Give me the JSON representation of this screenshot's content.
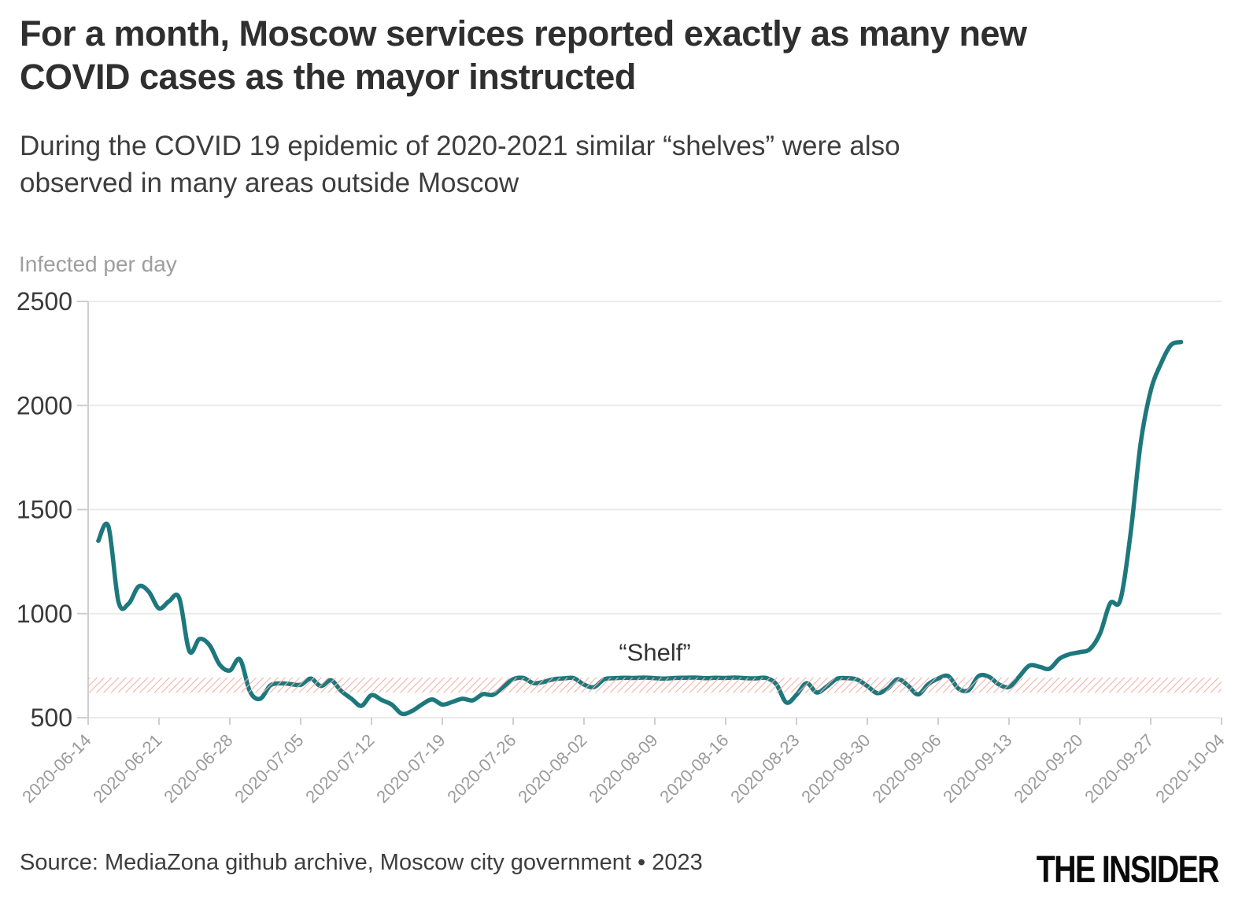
{
  "header": {
    "title_lines": [
      "For a month, Moscow services reported exactly as many new",
      "COVID cases as the mayor instructed"
    ],
    "subtitle_lines": [
      "During the COVID 19 epidemic of 2020-2021 similar “shelves” were also",
      "observed in many areas outside Moscow"
    ]
  },
  "footer": {
    "source": "Source: MediaZona github archive, Moscow city government • 2023",
    "logo": "THE INSIDER"
  },
  "chart_data": {
    "type": "line",
    "axis_title": "Infected per day",
    "ylabel": "Infected per day",
    "xlabel": "",
    "ylim": [
      500,
      2500
    ],
    "y_ticks": [
      2500,
      2000,
      1500,
      1000,
      500
    ],
    "grid": "horizontal",
    "legend": "none",
    "x_tick_labels": [
      "2020-06-14",
      "2020-06-21",
      "2020-06-28",
      "2020-07-05",
      "2020-07-12",
      "2020-07-19",
      "2020-07-26",
      "2020-08-02",
      "2020-08-09",
      "2020-08-16",
      "2020-08-23",
      "2020-08-30",
      "2020-09-06",
      "2020-09-13",
      "2020-09-20",
      "2020-09-27",
      "2020-10-04"
    ],
    "x_range_days": 112,
    "series_start": "2020-06-15",
    "series_start_day_offset": 1,
    "line_color": "#1d787d",
    "axis_color": "#cfcfcf",
    "gridline_color": "#ebebeb",
    "y_label_color": "#3a3a3a",
    "x_label_color": "#9b9b9b",
    "series": [
      {
        "name": "Infected per day, Moscow, daily 2020-06-15 to 2020-09-30",
        "values": [
          1350,
          1420,
          1056,
          1048,
          1131,
          1105,
          1025,
          1060,
          1075,
          820,
          878,
          848,
          755,
          727,
          780,
          625,
          591,
          655,
          665,
          662,
          658,
          688,
          652,
          680,
          629,
          592,
          557,
          608,
          585,
          563,
          519,
          532,
          564,
          588,
          563,
          576,
          591,
          583,
          613,
          610,
          647,
          685,
          691,
          666,
          672,
          685,
          689,
          690,
          659,
          647,
          685,
          690,
          692,
          691,
          693,
          690,
          688,
          691,
          692,
          693,
          690,
          692,
          691,
          693,
          690,
          689,
          691,
          661,
          573,
          610,
          666,
          621,
          650,
          687,
          690,
          683,
          652,
          618,
          640,
          685,
          655,
          612,
          660,
          688,
          700,
          640,
          632,
          700,
          697,
          660,
          648,
          697,
          750,
          745,
          735,
          784,
          805,
          815,
          830,
          905,
          1050,
          1065,
          1380,
          1815,
          2070,
          2200,
          2290,
          2305
        ]
      }
    ],
    "shelf_band": {
      "from": 620,
      "to": 693,
      "hatch_color": "#f0b2aa",
      "label": "“Shelf”",
      "label_day_offset": 56,
      "label_value": 815,
      "label_color": "#333333"
    }
  }
}
